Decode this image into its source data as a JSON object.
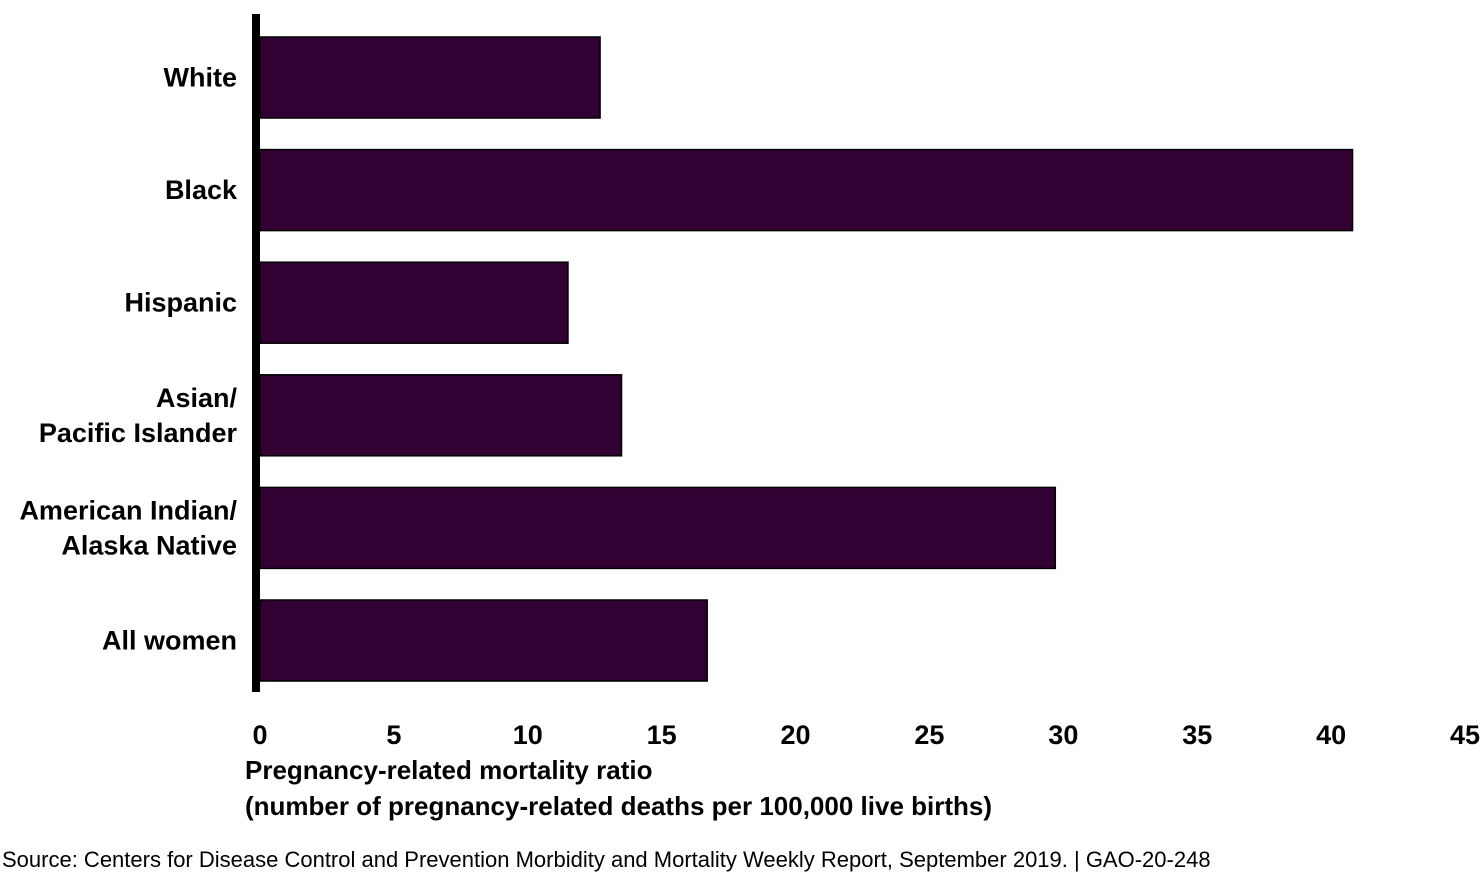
{
  "chart_data": {
    "type": "bar",
    "orientation": "horizontal",
    "categories": [
      [
        "White"
      ],
      [
        "Black"
      ],
      [
        "Hispanic"
      ],
      [
        "Asian/",
        "Pacific Islander"
      ],
      [
        "American Indian/",
        "Alaska Native"
      ],
      [
        "All women"
      ]
    ],
    "values": [
      12.7,
      40.8,
      11.5,
      13.5,
      29.7,
      16.7
    ],
    "xlim": [
      0,
      45
    ],
    "xticks": [
      0,
      5,
      10,
      15,
      20,
      25,
      30,
      35,
      40,
      45
    ],
    "xlabel": [
      "Pregnancy-related mortality ratio",
      "(number of pregnancy-related deaths per 100,000 live births)"
    ],
    "grid": false,
    "bar_color": "#330033"
  },
  "source": "Source: Centers for Disease Control and Prevention Morbidity and Mortality Weekly Report, September 2019.  |  GAO-20-248"
}
